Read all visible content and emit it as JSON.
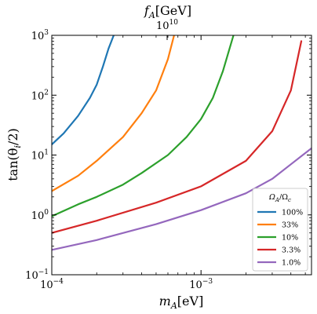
{
  "chart_data": {
    "type": "line",
    "top_axis": {
      "label": "$f_A$[GeV]",
      "label_text": "f",
      "label_sub": "A",
      "label_rest": "[GeV]",
      "tick_label": "10^10",
      "tick_base": "10",
      "tick_exp": "10"
    },
    "xlabel": "$m_A$[eV]",
    "xlabel_text": "m",
    "xlabel_sub": "A",
    "xlabel_rest": "[eV]",
    "ylabel": "$\\tan(\\theta_i/2)$",
    "ylabel_text": "tan(θ",
    "ylabel_sub": "i",
    "ylabel_rest": "/2)",
    "xscale": "log",
    "yscale": "log",
    "xlim": [
      0.0001,
      0.0055
    ],
    "ylim": [
      0.1,
      1000
    ],
    "xticks": [
      {
        "value": 0.0001,
        "base": "10",
        "exp": "−4"
      },
      {
        "value": 0.001,
        "base": "10",
        "exp": "−3"
      }
    ],
    "yticks": [
      {
        "value": 0.1,
        "base": "10",
        "exp": "−1"
      },
      {
        "value": 1,
        "base": "10",
        "exp": "0"
      },
      {
        "value": 10,
        "base": "10",
        "exp": "1"
      },
      {
        "value": 100,
        "base": "10",
        "exp": "2"
      },
      {
        "value": 1000,
        "base": "10",
        "exp": "3"
      }
    ],
    "grid": false,
    "legend": {
      "placement": "bottom-right",
      "title": "Ω_A/Ω_c",
      "title_main": "Ω",
      "title_sub1": "A",
      "title_slash": "/Ω",
      "title_sub2": "c"
    },
    "series": [
      {
        "name": "100%",
        "color": "#1f77b4",
        "points": [
          [
            0.0001,
            15
          ],
          [
            0.00012,
            23
          ],
          [
            0.00015,
            45
          ],
          [
            0.00018,
            90
          ],
          [
            0.0002,
            150
          ],
          [
            0.00022,
            300
          ],
          [
            0.00024,
            600
          ],
          [
            0.00026,
            1000
          ]
        ]
      },
      {
        "name": "33%",
        "color": "#ff7f0e",
        "points": [
          [
            0.0001,
            2.5
          ],
          [
            0.00015,
            4.5
          ],
          [
            0.0002,
            8
          ],
          [
            0.0003,
            20
          ],
          [
            0.0004,
            50
          ],
          [
            0.0005,
            120
          ],
          [
            0.0006,
            400
          ],
          [
            0.00066,
            1000
          ]
        ]
      },
      {
        "name": "10%",
        "color": "#2ca02c",
        "points": [
          [
            0.0001,
            0.95
          ],
          [
            0.00015,
            1.5
          ],
          [
            0.0002,
            2
          ],
          [
            0.0003,
            3.2
          ],
          [
            0.0004,
            5
          ],
          [
            0.0006,
            10
          ],
          [
            0.0008,
            20
          ],
          [
            0.001,
            40
          ],
          [
            0.0012,
            90
          ],
          [
            0.0014,
            250
          ],
          [
            0.00165,
            1000
          ]
        ]
      },
      {
        "name": "3.3%",
        "color": "#d62728",
        "points": [
          [
            0.0001,
            0.5
          ],
          [
            0.0002,
            0.8
          ],
          [
            0.0005,
            1.6
          ],
          [
            0.001,
            3
          ],
          [
            0.002,
            8
          ],
          [
            0.003,
            25
          ],
          [
            0.004,
            120
          ],
          [
            0.0047,
            800
          ]
        ]
      },
      {
        "name": "1.0%",
        "color": "#9467bd",
        "points": [
          [
            0.0001,
            0.26
          ],
          [
            0.0002,
            0.38
          ],
          [
            0.0005,
            0.7
          ],
          [
            0.001,
            1.2
          ],
          [
            0.002,
            2.3
          ],
          [
            0.003,
            4
          ],
          [
            0.004,
            7
          ],
          [
            0.0055,
            13
          ]
        ]
      }
    ]
  }
}
